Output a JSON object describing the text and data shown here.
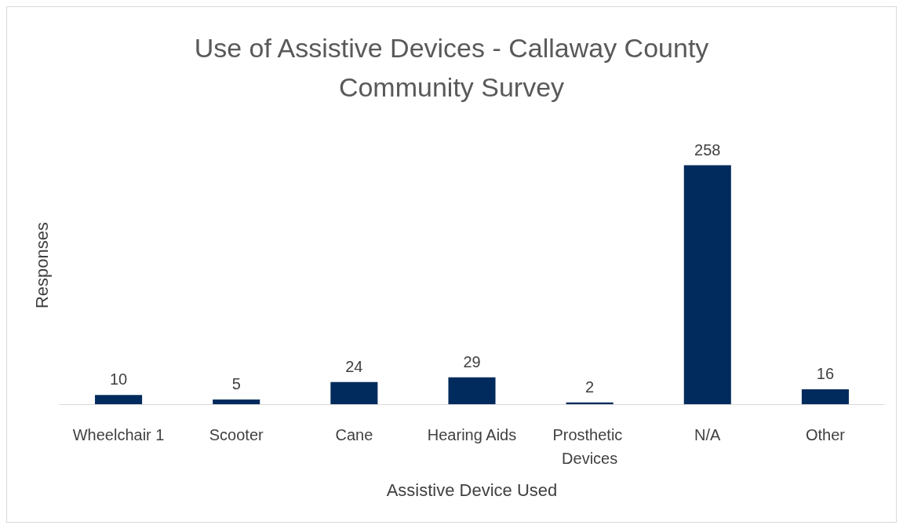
{
  "chart_data": {
    "type": "bar",
    "title": "Use of Assistive Devices - Callaway County\nCommunity Survey",
    "xlabel": "Assistive Device Used",
    "ylabel": "Responses",
    "categories": [
      "Wheelchair 1",
      "Scooter",
      "Cane",
      "Hearing Aids",
      "Prosthetic Devices",
      "N/A",
      "Other"
    ],
    "values": [
      10,
      5,
      24,
      29,
      2,
      258,
      16
    ],
    "color": "#002b5c",
    "data_labels": true,
    "grid": false
  }
}
